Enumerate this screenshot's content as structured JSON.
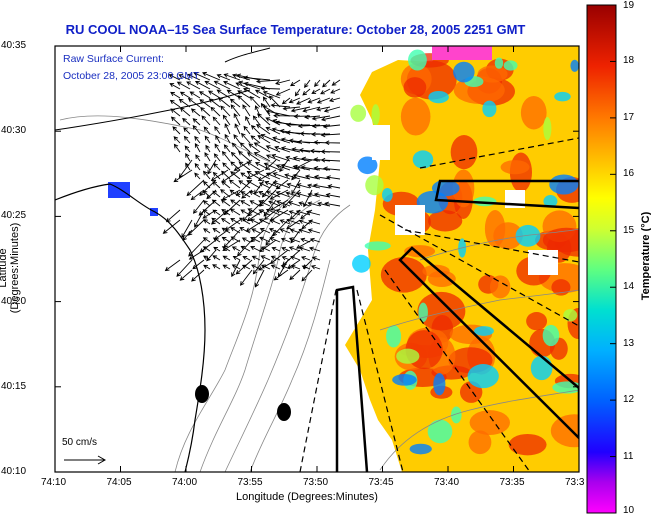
{
  "title": "RU COOL  NOAA–15  Sea Surface Temperature:  October 28, 2005 2251  GMT",
  "current": {
    "line1": "Raw Surface Current:",
    "line2": "October 28, 2005 23:00 GMT",
    "scale_label": "50 cm/s"
  },
  "axes": {
    "x_title": "Longitude (Degrees:Minutes)",
    "y_title": "Latitude (Degrees:Minutes)",
    "x_ticks": [
      "74:10",
      "74:05",
      "74:00",
      "73:55",
      "73:50",
      "73:45",
      "73:40",
      "73:35",
      "73:3"
    ],
    "y_ticks": [
      "40:35",
      "40:30",
      "40:25",
      "40:20",
      "40:15",
      "40:10"
    ]
  },
  "colorbar": {
    "title": "Temperature (°C)",
    "ticks": [
      "19",
      "18",
      "17",
      "16",
      "15",
      "14",
      "13",
      "12",
      "11",
      "10"
    ],
    "min": 10,
    "max": 19,
    "colors": [
      "#ff00ff",
      "#6600cc",
      "#0000ff",
      "#0080ff",
      "#00dddd",
      "#66ff66",
      "#ffff00",
      "#ffaa00",
      "#ff4400",
      "#cc0000",
      "#990000"
    ]
  }
}
